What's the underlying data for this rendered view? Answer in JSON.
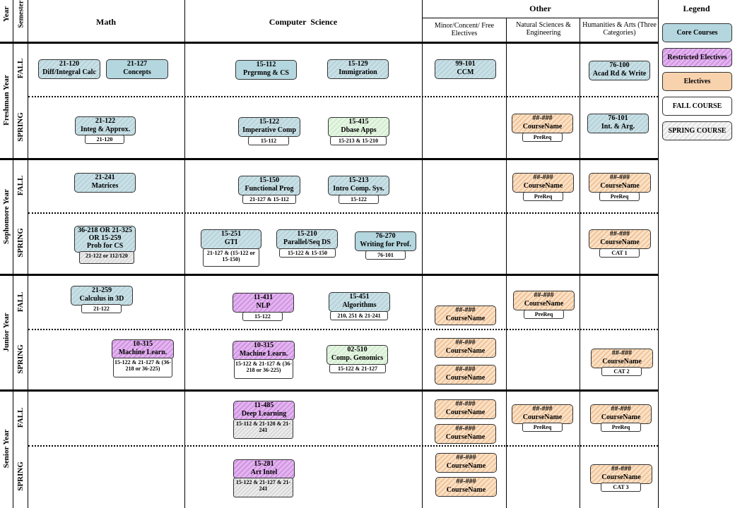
{
  "headers": {
    "year": "Year",
    "semester": "Semester",
    "math": "Math",
    "cs": "Computer  Science",
    "other": "Other",
    "minor": "Minor/Concent/ Free Electives",
    "natsci": "Natural Sciences & Engineering",
    "humanities": "Humanities & Arts (Three Categories)"
  },
  "years": [
    "Freshman Year",
    "Sophomore  Year",
    "Junior Year",
    "Senior Year"
  ],
  "semesters": {
    "fall": "FALL",
    "spring": "SPRING"
  },
  "legend": {
    "title": "Legend",
    "core": "Core Courses",
    "restricted": "Restricted Electives",
    "electives": "Electives",
    "fall": "FALL COURSE",
    "spring": "SPRING COURSE"
  },
  "colors": {
    "core": "#b4d6de",
    "restricted": "#cf94e0",
    "electives": "#f7d2ad",
    "spring_green": "#d2ecce",
    "dashed_line": "#000000"
  },
  "courses": [
    {
      "code": "21-120",
      "name": "Diff/Integral Calc"
    },
    {
      "code": "21-127",
      "name": "Concepts"
    },
    {
      "code": "15-112",
      "name": "Prgrmng & CS"
    },
    {
      "code": "15-129",
      "name": "Immigration"
    },
    {
      "code": "99-101",
      "name": "CCM"
    },
    {
      "code": "76-100",
      "name": "Acad Rd & Write"
    },
    {
      "code": "21-122",
      "name": "Integ & Approx.",
      "prereq": "21-120"
    },
    {
      "code": "15-122",
      "name": "Imperative Comp",
      "prereq": "15-112"
    },
    {
      "code": "15-415",
      "name": "Dbase Apps",
      "prereq": "15-213 & 15-210"
    },
    {
      "code": "##-###",
      "name": "CourseName",
      "prereq": "PreReq"
    },
    {
      "code": "76-101",
      "name": "Int. & Arg."
    },
    {
      "code": "21-241",
      "name": "Matrices"
    },
    {
      "code": "15-150",
      "name": "Functional Prog",
      "prereq": "21-127 & 15-112"
    },
    {
      "code": "15-213",
      "name": "Intro Comp. Sys.",
      "prereq": "15-122"
    },
    {
      "code": "##-###",
      "name": "CourseName",
      "prereq": "PreReq"
    },
    {
      "code": "##-###",
      "name": "CourseName",
      "prereq": "PreReq"
    },
    {
      "code": "36-218 OR 21-325",
      "code2": "OR 15-259",
      "name": "Prob for CS",
      "prereq": "21-122 or 112/120"
    },
    {
      "code": "15-251",
      "name": "GTI",
      "prereq": "21-127 & (15-122 or 15-150)"
    },
    {
      "code": "15-210",
      "name": "Parallel/Seq DS",
      "prereq": "15-122 & 15-150"
    },
    {
      "code": "76-270",
      "name": "Writing for Prof.",
      "prereq": "76-101"
    },
    {
      "code": "##-###",
      "name": "CourseName",
      "prereq": "CAT 1"
    },
    {
      "code": "21-259",
      "name": "Calculus in 3D",
      "prereq": "21-122"
    },
    {
      "code": "11-411",
      "name": "NLP",
      "prereq": "15-122"
    },
    {
      "code": "15-451",
      "name": "Algorithms",
      "prereq": "210, 251 & 21-241"
    },
    {
      "code": "##-###",
      "name": "CourseName"
    },
    {
      "code": "##-###",
      "name": "CourseName",
      "prereq": "PreReq"
    },
    {
      "code": "10-315",
      "name": "Machine Learn.",
      "prereq": "15-122 & 21-127 & (36-218 or 36-225)"
    },
    {
      "code": "10-315",
      "name": "Machine Learn.",
      "prereq": "15-122 & 21-127 & (36-218 or 36-225)"
    },
    {
      "code": "02-510",
      "name": "Comp. Genomics",
      "prereq": "15-122 & 21-127"
    },
    {
      "code": "##-###",
      "name": "CourseName"
    },
    {
      "code": "##-###",
      "name": "CourseName"
    },
    {
      "code": "##-###",
      "name": "CourseName",
      "prereq": "CAT 2"
    },
    {
      "code": "11-485",
      "name": "Deep Learning",
      "prereq": "15-112 & 21-120 & 21-241"
    },
    {
      "code": "##-###",
      "name": "CourseName"
    },
    {
      "code": "##-###",
      "name": "CourseName"
    },
    {
      "code": "##-###",
      "name": "CourseName",
      "prereq": "PreReq"
    },
    {
      "code": "##-###",
      "name": "CourseName",
      "prereq": "PreReq"
    },
    {
      "code": "15-281",
      "name": "Art Intel",
      "prereq": "15-122 & 21-127 & 21-241"
    },
    {
      "code": "##-###",
      "name": "CourseName"
    },
    {
      "code": "##-###",
      "name": "CourseName"
    },
    {
      "code": "##-###",
      "name": "CourseName",
      "prereq": "CAT 3"
    }
  ]
}
